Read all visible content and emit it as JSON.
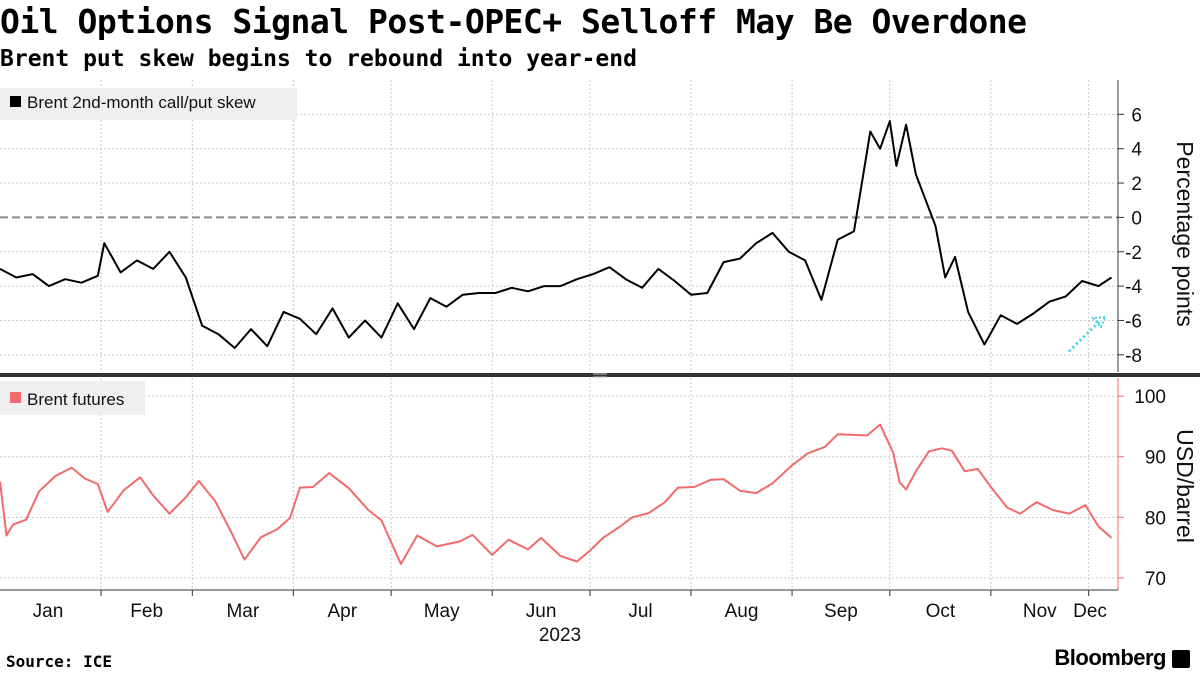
{
  "header": {
    "title": "Oil Options Signal Post-OPEC+ Selloff May Be Overdone",
    "subtitle": "Brent put skew begins to rebound into year-end"
  },
  "footer": {
    "source": "Source: ICE",
    "brand": "Bloomberg"
  },
  "colors": {
    "skew": "#000000",
    "futures": "#f26b6b",
    "arrow": "#3fd3e8",
    "grid": "#c8c8c8",
    "zero_line": "#8a8a8a",
    "divider": "#333333"
  },
  "chart_data": [
    {
      "type": "line",
      "year": "2023",
      "x_ticks": [
        "Jan",
        "Feb",
        "Mar",
        "Apr",
        "May",
        "Jun",
        "Jul",
        "Aug",
        "Sep",
        "Oct",
        "Nov",
        "Dec"
      ],
      "y_label": "Percentage points",
      "y_ticks": [
        -8,
        -6,
        -4,
        -2,
        0,
        2,
        4,
        6
      ],
      "ylim": [
        -9,
        8
      ],
      "reference_line": 0,
      "legend": "Brent 2nd-month call/put skew",
      "annotation": "cyan dotted arrow pointing up-right in late Nov–early Dec",
      "series": [
        {
          "name": "Brent 2nd-month call/put skew",
          "x": [
            "2023-01-01",
            "2023-01-06",
            "2023-01-11",
            "2023-01-16",
            "2023-01-21",
            "2023-01-26",
            "2023-01-31",
            "2023-02-02",
            "2023-02-07",
            "2023-02-12",
            "2023-02-17",
            "2023-02-22",
            "2023-02-27",
            "2023-03-04",
            "2023-03-09",
            "2023-03-14",
            "2023-03-19",
            "2023-03-24",
            "2023-03-29",
            "2023-04-03",
            "2023-04-08",
            "2023-04-13",
            "2023-04-18",
            "2023-04-23",
            "2023-04-28",
            "2023-05-03",
            "2023-05-08",
            "2023-05-13",
            "2023-05-18",
            "2023-05-23",
            "2023-05-28",
            "2023-06-02",
            "2023-06-07",
            "2023-06-12",
            "2023-06-17",
            "2023-06-22",
            "2023-06-27",
            "2023-07-02",
            "2023-07-07",
            "2023-07-12",
            "2023-07-17",
            "2023-07-22",
            "2023-07-27",
            "2023-08-01",
            "2023-08-06",
            "2023-08-11",
            "2023-08-16",
            "2023-08-21",
            "2023-08-26",
            "2023-08-31",
            "2023-09-05",
            "2023-09-10",
            "2023-09-15",
            "2023-09-20",
            "2023-09-25",
            "2023-09-28",
            "2023-10-01",
            "2023-10-03",
            "2023-10-06",
            "2023-10-09",
            "2023-10-12",
            "2023-10-15",
            "2023-10-18",
            "2023-10-21",
            "2023-10-25",
            "2023-10-30",
            "2023-11-04",
            "2023-11-09",
            "2023-11-14",
            "2023-11-19",
            "2023-11-24",
            "2023-11-29",
            "2023-12-04",
            "2023-12-08"
          ],
          "y": [
            -3.0,
            -3.5,
            -3.3,
            -4.0,
            -3.6,
            -3.8,
            -3.4,
            -1.5,
            -3.2,
            -2.5,
            -3.0,
            -2.0,
            -3.5,
            -6.3,
            -6.8,
            -7.6,
            -6.5,
            -7.5,
            -5.5,
            -5.9,
            -6.8,
            -5.3,
            -7.0,
            -6.0,
            -7.0,
            -5.0,
            -6.5,
            -4.7,
            -5.2,
            -4.5,
            -4.4,
            -4.4,
            -4.1,
            -4.3,
            -4.0,
            -4.0,
            -3.6,
            -3.3,
            -2.9,
            -3.6,
            -4.1,
            -3.0,
            -3.7,
            -4.5,
            -4.4,
            -2.6,
            -2.4,
            -1.5,
            -0.9,
            -2.0,
            -2.5,
            -4.8,
            -1.3,
            -0.8,
            5.0,
            4.0,
            5.6,
            3.0,
            5.4,
            2.5,
            1.0,
            -0.5,
            -3.5,
            -2.3,
            -5.5,
            -7.4,
            -5.7,
            -6.2,
            -5.6,
            -4.9,
            -4.6,
            -3.7,
            -4.0,
            -3.5
          ]
        }
      ]
    },
    {
      "type": "line",
      "x_ticks": [
        "Jan",
        "Feb",
        "Mar",
        "Apr",
        "May",
        "Jun",
        "Jul",
        "Aug",
        "Sep",
        "Oct",
        "Nov",
        "Dec"
      ],
      "y_label": "USD/barrel",
      "y_ticks": [
        70,
        80,
        90,
        100
      ],
      "ylim": [
        68,
        103
      ],
      "legend": "Brent futures",
      "series": [
        {
          "name": "Brent futures",
          "x": [
            "2023-01-01",
            "2023-01-03",
            "2023-01-05",
            "2023-01-09",
            "2023-01-13",
            "2023-01-18",
            "2023-01-23",
            "2023-01-27",
            "2023-01-31",
            "2023-02-03",
            "2023-02-08",
            "2023-02-13",
            "2023-02-17",
            "2023-02-22",
            "2023-02-27",
            "2023-03-03",
            "2023-03-08",
            "2023-03-13",
            "2023-03-17",
            "2023-03-22",
            "2023-03-27",
            "2023-03-31",
            "2023-04-03",
            "2023-04-07",
            "2023-04-12",
            "2023-04-18",
            "2023-04-24",
            "2023-04-28",
            "2023-05-04",
            "2023-05-09",
            "2023-05-15",
            "2023-05-22",
            "2023-05-26",
            "2023-06-01",
            "2023-06-06",
            "2023-06-12",
            "2023-06-16",
            "2023-06-22",
            "2023-06-27",
            "2023-07-01",
            "2023-07-05",
            "2023-07-10",
            "2023-07-14",
            "2023-07-19",
            "2023-07-24",
            "2023-07-28",
            "2023-08-02",
            "2023-08-07",
            "2023-08-11",
            "2023-08-16",
            "2023-08-21",
            "2023-08-26",
            "2023-09-01",
            "2023-09-06",
            "2023-09-11",
            "2023-09-15",
            "2023-09-20",
            "2023-09-24",
            "2023-09-28",
            "2023-10-02",
            "2023-10-04",
            "2023-10-06",
            "2023-10-09",
            "2023-10-13",
            "2023-10-17",
            "2023-10-20",
            "2023-10-24",
            "2023-10-28",
            "2023-11-01",
            "2023-11-06",
            "2023-11-10",
            "2023-11-15",
            "2023-11-20",
            "2023-11-25",
            "2023-11-30",
            "2023-12-04",
            "2023-12-08"
          ],
          "y": [
            85.9,
            77.0,
            78.8,
            79.6,
            84.3,
            86.8,
            88.2,
            86.4,
            85.5,
            80.9,
            84.5,
            86.6,
            83.6,
            80.6,
            83.3,
            86.0,
            82.7,
            77.5,
            73.0,
            76.7,
            78.0,
            79.9,
            84.9,
            85.0,
            87.3,
            84.8,
            81.2,
            79.5,
            72.3,
            77.0,
            75.2,
            76.0,
            77.1,
            73.8,
            76.3,
            74.7,
            76.6,
            73.6,
            72.7,
            74.5,
            76.6,
            78.4,
            80.0,
            80.7,
            82.5,
            84.9,
            85.0,
            86.2,
            86.3,
            84.4,
            84.0,
            85.6,
            88.6,
            90.6,
            91.6,
            93.7,
            93.6,
            93.5,
            95.3,
            90.7,
            85.8,
            84.6,
            87.6,
            90.9,
            91.4,
            91.0,
            87.6,
            88.0,
            85.0,
            81.6,
            80.6,
            82.5,
            81.2,
            80.6,
            82.0,
            78.5,
            76.6
          ]
        }
      ]
    }
  ]
}
